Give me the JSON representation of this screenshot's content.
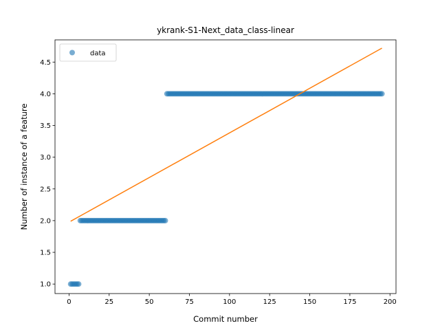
{
  "chart_data": {
    "type": "scatter",
    "title": "ykrank-S1-Next_data_class-linear",
    "xlabel": "Commit number",
    "ylabel": "Number of instance of a feature",
    "xlim": [
      -8.75,
      203.75
    ],
    "ylim": [
      0.85,
      4.85
    ],
    "xticks": [
      0,
      25,
      50,
      75,
      100,
      125,
      150,
      175,
      200
    ],
    "yticks": [
      1.0,
      1.5,
      2.0,
      2.5,
      3.0,
      3.5,
      4.0,
      4.5
    ],
    "ytick_labels": [
      "1.0",
      "1.5",
      "2.0",
      "2.5",
      "3.0",
      "3.5",
      "4.0",
      "4.5"
    ],
    "grid": false,
    "legend": {
      "position": "top-left",
      "entries": [
        "data"
      ]
    },
    "series": [
      {
        "name": "data",
        "kind": "points",
        "color": "#1f77b4",
        "segments": [
          {
            "x_start": 1,
            "x_end": 6,
            "y": 1.0
          },
          {
            "x_start": 7,
            "x_end": 60,
            "y": 2.0
          },
          {
            "x_start": 61,
            "x_end": 195,
            "y": 4.0
          }
        ]
      },
      {
        "kind": "fit-line",
        "color": "#ff7f0e",
        "x": [
          1,
          195
        ],
        "y": [
          1.99,
          4.72
        ]
      }
    ]
  }
}
